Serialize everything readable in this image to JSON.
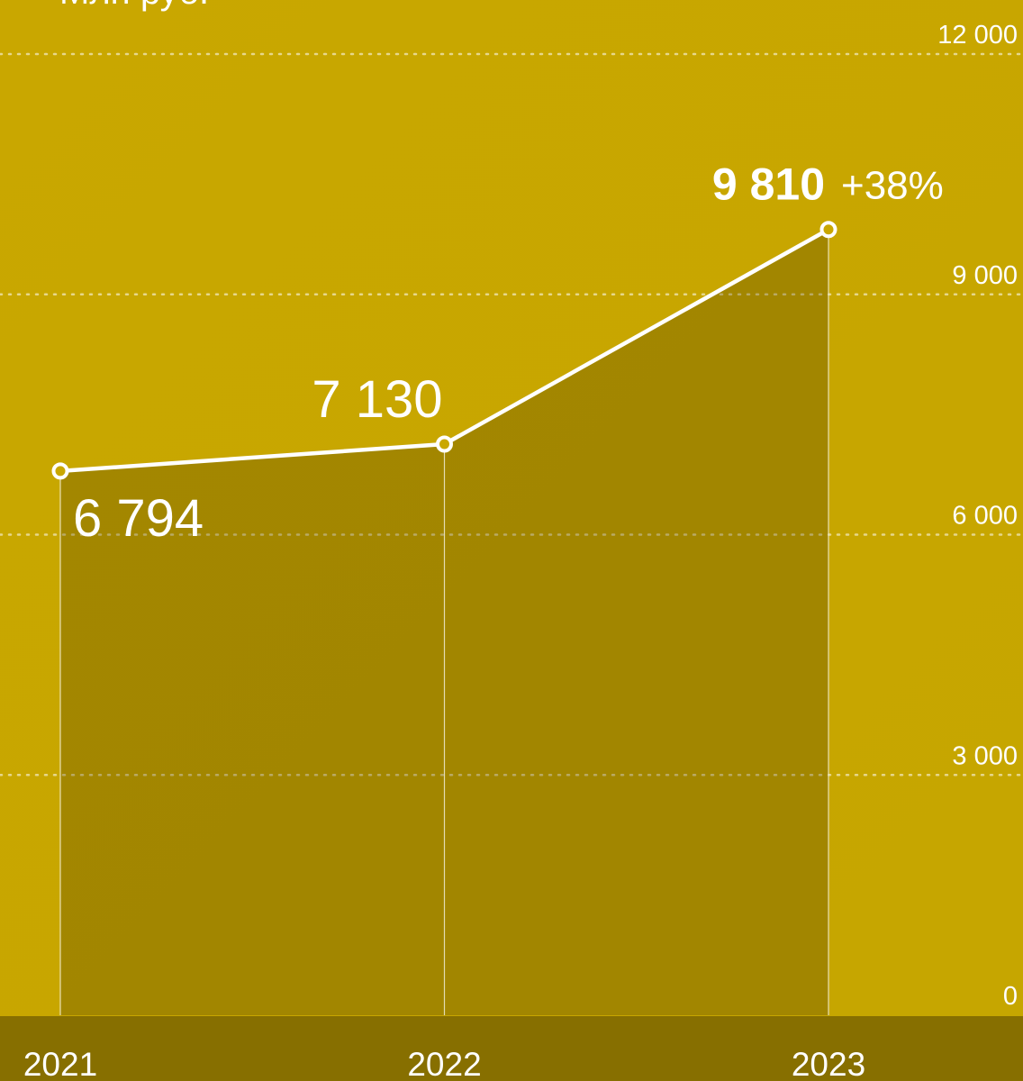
{
  "chart_data": {
    "type": "area",
    "subtitle": "Млн руб.",
    "categories": [
      "2021",
      "2022",
      "2023"
    ],
    "values": [
      6794,
      7130,
      9810
    ],
    "value_labels": [
      "6 794",
      "7 130",
      "9 810"
    ],
    "annotation": "+38%",
    "color": "#ffffff",
    "ylim": [
      0,
      12000
    ],
    "yticks": [
      0,
      {
        "value": 3000,
        "label": "3 000"
      },
      {
        "value": 6000,
        "label": "6 000"
      },
      {
        "value": 9000,
        "label": "9 000"
      },
      {
        "value": 12000,
        "label": "12 000"
      }
    ],
    "grid": true
  }
}
